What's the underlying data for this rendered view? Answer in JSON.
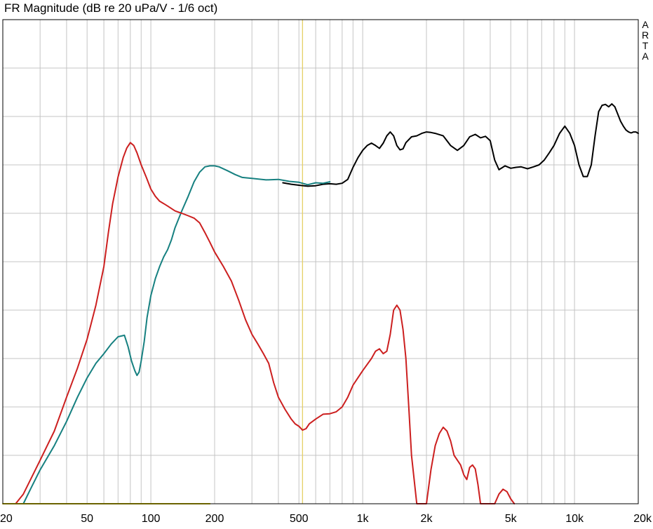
{
  "chart_data": {
    "type": "line",
    "title": "FR Magnitude (dB re 20 uPa/V - 1/6 oct)",
    "brand": [
      "A",
      "R",
      "T",
      "A"
    ],
    "xlabel": "",
    "ylabel": "",
    "x_scale": "log",
    "xlim": [
      20,
      20000
    ],
    "ylim": [
      0,
      100
    ],
    "y_gridlines": 10,
    "x_tick_labels": [
      {
        "value": 20,
        "label": "20"
      },
      {
        "value": 50,
        "label": "50"
      },
      {
        "value": 100,
        "label": "100"
      },
      {
        "value": 200,
        "label": "200"
      },
      {
        "value": 500,
        "label": "500"
      },
      {
        "value": 1000,
        "label": "1k"
      },
      {
        "value": 2000,
        "label": "2k"
      },
      {
        "value": 5000,
        "label": "5k"
      },
      {
        "value": 10000,
        "label": "10k"
      },
      {
        "value": 20000,
        "label": "20k"
      }
    ],
    "x_grid": [
      20,
      30,
      40,
      50,
      60,
      70,
      80,
      90,
      100,
      200,
      300,
      400,
      500,
      600,
      700,
      800,
      900,
      1000,
      2000,
      3000,
      4000,
      5000,
      6000,
      7000,
      8000,
      9000,
      10000,
      20000
    ],
    "grid": true,
    "legend": "none",
    "cursor": {
      "x": 520,
      "color": "#e6d066"
    },
    "series": [
      {
        "color": "#000000",
        "x": [
          420,
          460,
          500,
          550,
          600,
          650,
          700,
          750,
          800,
          850,
          900,
          950,
          1000,
          1050,
          1100,
          1150,
          1200,
          1250,
          1300,
          1350,
          1400,
          1450,
          1500,
          1550,
          1600,
          1700,
          1800,
          1900,
          2000,
          2100,
          2200,
          2400,
          2600,
          2800,
          3000,
          3200,
          3400,
          3600,
          3800,
          4000,
          4200,
          4400,
          4700,
          5000,
          5300,
          5600,
          6000,
          6400,
          6800,
          7200,
          7600,
          8000,
          8500,
          9000,
          9500,
          10000,
          10500,
          11000,
          11500,
          12000,
          12500,
          13000,
          13500,
          14000,
          14500,
          15000,
          15500,
          16000,
          16500,
          17000,
          17500,
          18000,
          18500,
          19000,
          19500,
          20000
        ],
        "values": [
          66.3,
          66.0,
          65.8,
          65.6,
          65.7,
          66.0,
          66.1,
          66.0,
          66.2,
          67.0,
          69.5,
          71.5,
          73.0,
          74.0,
          74.5,
          74.0,
          73.4,
          74.5,
          76.0,
          76.8,
          76.0,
          74.0,
          73.1,
          73.3,
          74.6,
          75.8,
          76.0,
          76.5,
          76.8,
          76.7,
          76.5,
          76.0,
          74.0,
          73.0,
          74.0,
          75.8,
          76.3,
          75.6,
          75.9,
          75.0,
          71.0,
          69.0,
          69.8,
          69.3,
          69.5,
          69.6,
          69.2,
          69.6,
          70.0,
          71.0,
          72.5,
          74.0,
          76.5,
          78.0,
          76.5,
          74.0,
          70.0,
          67.6,
          67.6,
          70.0,
          76.0,
          81.0,
          82.3,
          82.5,
          82.0,
          82.6,
          82.0,
          80.5,
          79.0,
          78.0,
          77.2,
          76.8,
          76.6,
          76.8,
          76.8,
          76.5
        ]
      },
      {
        "color": "#168080",
        "x": [
          25,
          27,
          30,
          35,
          40,
          45,
          50,
          55,
          60,
          65,
          70,
          75,
          78,
          81,
          84,
          86,
          88,
          90,
          93,
          96,
          100,
          105,
          110,
          115,
          120,
          125,
          130,
          140,
          150,
          160,
          170,
          180,
          190,
          200,
          210,
          230,
          250,
          270,
          300,
          350,
          400,
          450,
          500,
          550,
          600,
          650,
          700
        ],
        "values": [
          0,
          3,
          7,
          12,
          17,
          22,
          26,
          29,
          31,
          33,
          34.5,
          34.8,
          32.5,
          29.5,
          27.5,
          26.5,
          27.2,
          29.5,
          33.5,
          38.5,
          43,
          46.5,
          49,
          51,
          52.5,
          54.5,
          57,
          60.5,
          63.5,
          66.5,
          68.5,
          69.6,
          69.8,
          69.8,
          69.6,
          68.8,
          68.0,
          67.4,
          67.2,
          66.9,
          67.0,
          66.6,
          66.4,
          65.9,
          66.3,
          66.2,
          66.5
        ]
      },
      {
        "color": "#cc1f1f",
        "x": [
          23,
          25,
          30,
          35,
          40,
          45,
          50,
          55,
          60,
          63,
          66,
          70,
          74,
          77,
          80,
          83,
          86,
          90,
          95,
          100,
          105,
          110,
          115,
          120,
          130,
          140,
          150,
          160,
          170,
          180,
          190,
          200,
          220,
          240,
          260,
          280,
          300,
          320,
          340,
          360,
          380,
          400,
          430,
          460,
          480,
          500,
          520,
          540,
          560,
          600,
          650,
          700,
          750,
          800,
          850,
          900,
          1000,
          1100,
          1150,
          1200,
          1250,
          1300,
          1350,
          1400,
          1450,
          1500,
          1550,
          1600,
          1650,
          1700,
          1800,
          1900,
          2000,
          2100,
          2200,
          2300,
          2400,
          2500,
          2600,
          2700,
          2800,
          2900,
          3000,
          3100,
          3200,
          3300,
          3400,
          3500,
          3600,
          3800,
          4200,
          4400,
          4600,
          4800,
          5000,
          5200
        ],
        "values": [
          0,
          2,
          9,
          15,
          22,
          28,
          34,
          41,
          49,
          56,
          62,
          67.5,
          71.5,
          73.5,
          74.6,
          74.0,
          72.5,
          70.0,
          67.5,
          65.0,
          63.5,
          62.5,
          62.0,
          61.5,
          60.5,
          60.0,
          59.5,
          59.0,
          58.0,
          56.0,
          54.0,
          52.0,
          49.0,
          46.0,
          42.0,
          38.0,
          35.0,
          33.0,
          31.0,
          29.0,
          25.0,
          22.0,
          19.5,
          17.5,
          16.5,
          16.0,
          15.2,
          15.5,
          16.5,
          17.5,
          18.5,
          18.6,
          19.0,
          20.0,
          22.0,
          24.5,
          27.5,
          30.0,
          31.5,
          32.0,
          31.0,
          31.5,
          35.0,
          40.0,
          41.0,
          40.0,
          36.0,
          30.0,
          20.0,
          10.0,
          0,
          0,
          0,
          7.0,
          12.0,
          14.5,
          15.8,
          15.0,
          13.0,
          10.0,
          9.0,
          8.0,
          6.0,
          5.0,
          7.5,
          8.0,
          7.2,
          4.0,
          0,
          0,
          0,
          2.0,
          3.0,
          2.5,
          1.0,
          0
        ]
      },
      {
        "color": "#d6c400",
        "x": [
          20,
          30,
          40,
          50,
          60,
          70,
          80,
          90,
          100,
          120,
          150,
          190
        ],
        "values": [
          0,
          0,
          0,
          0,
          0,
          0,
          0,
          0,
          0,
          0,
          0,
          0
        ]
      }
    ]
  }
}
